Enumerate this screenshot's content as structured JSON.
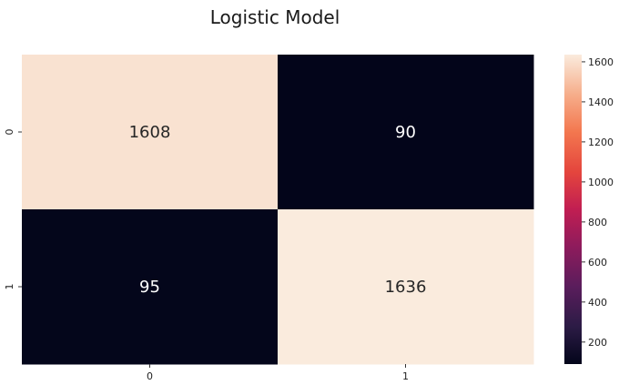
{
  "chart_data": {
    "type": "heatmap",
    "title": "Logistic Model",
    "xlabel": "",
    "ylabel": "",
    "x_categories": [
      "0",
      "1"
    ],
    "y_categories": [
      "0",
      "1"
    ],
    "values": [
      [
        1608,
        90
      ],
      [
        95,
        1636
      ]
    ],
    "colorbar": {
      "colormap": "rocket",
      "range": [
        90,
        1636
      ],
      "ticks": [
        200,
        400,
        600,
        800,
        1000,
        1200,
        1400,
        1600
      ],
      "tick_labels": [
        "200",
        "400",
        "600",
        "800",
        "1000",
        "1200",
        "1400",
        "1600"
      ],
      "placement": "right"
    },
    "annotation_colors": {
      "on_dark": "#ffffff",
      "on_light": "#262626"
    }
  }
}
